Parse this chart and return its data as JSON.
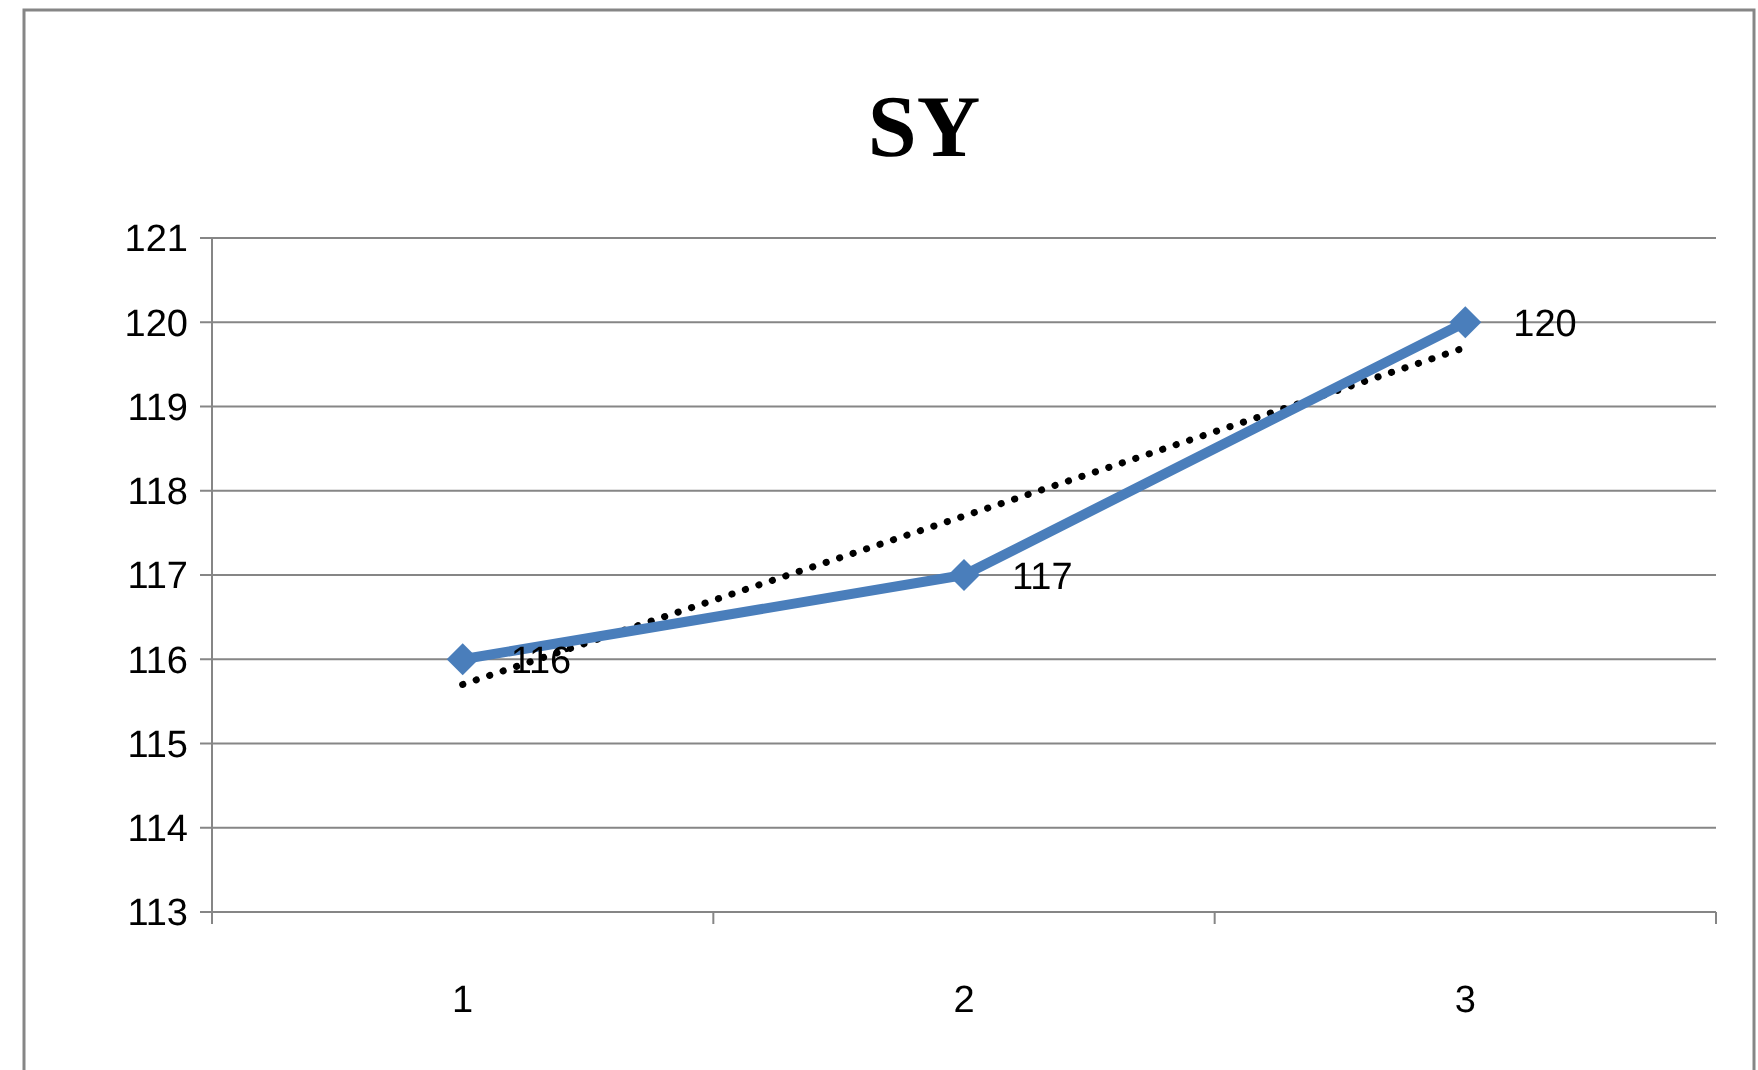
{
  "chart_data": {
    "type": "line",
    "title": "SY",
    "categories": [
      "1",
      "2",
      "3"
    ],
    "ylim": [
      113,
      121
    ],
    "yticks": [
      113,
      114,
      115,
      116,
      117,
      118,
      119,
      120,
      121
    ],
    "grid": "y",
    "series": [
      {
        "color": "#4a7ebb",
        "values": [
          116,
          117,
          120
        ],
        "value_labels": [
          "116",
          "117",
          "120"
        ],
        "marker": "diamond",
        "line_style": "solid"
      },
      {
        "type": "line",
        "color": "#000000",
        "values": [
          115.7,
          117.7,
          119.7
        ],
        "marker": "none",
        "line_style": "dotted"
      }
    ]
  }
}
